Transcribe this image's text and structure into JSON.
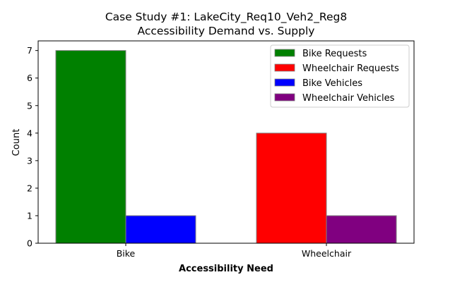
{
  "chart_data": {
    "type": "bar",
    "title_line1": "Case Study #1: LakeCity_Req10_Veh2_Reg8",
    "title_line2": "Accessibility Demand vs. Supply",
    "xlabel": "Accessibility Need",
    "ylabel": "Count",
    "categories": [
      "Bike",
      "Wheelchair"
    ],
    "yticks": [
      "0",
      "1",
      "2",
      "3",
      "4",
      "5",
      "6",
      "7"
    ],
    "ylim": [
      0,
      7.35
    ],
    "legend_position": "upper-right",
    "bars": [
      {
        "name": "Bike Requests",
        "category": "Bike",
        "value": 7,
        "color": "#008000"
      },
      {
        "name": "Bike Vehicles",
        "category": "Bike",
        "value": 1,
        "color": "#0000ff"
      },
      {
        "name": "Wheelchair Requests",
        "category": "Wheelchair",
        "value": 4,
        "color": "#ff0000"
      },
      {
        "name": "Wheelchair Vehicles",
        "category": "Wheelchair",
        "value": 1,
        "color": "#800080"
      }
    ],
    "legend": [
      {
        "label": "Bike Requests",
        "color": "#008000"
      },
      {
        "label": "Wheelchair Requests",
        "color": "#ff0000"
      },
      {
        "label": "Bike Vehicles",
        "color": "#0000ff"
      },
      {
        "label": "Wheelchair Vehicles",
        "color": "#800080"
      }
    ]
  }
}
